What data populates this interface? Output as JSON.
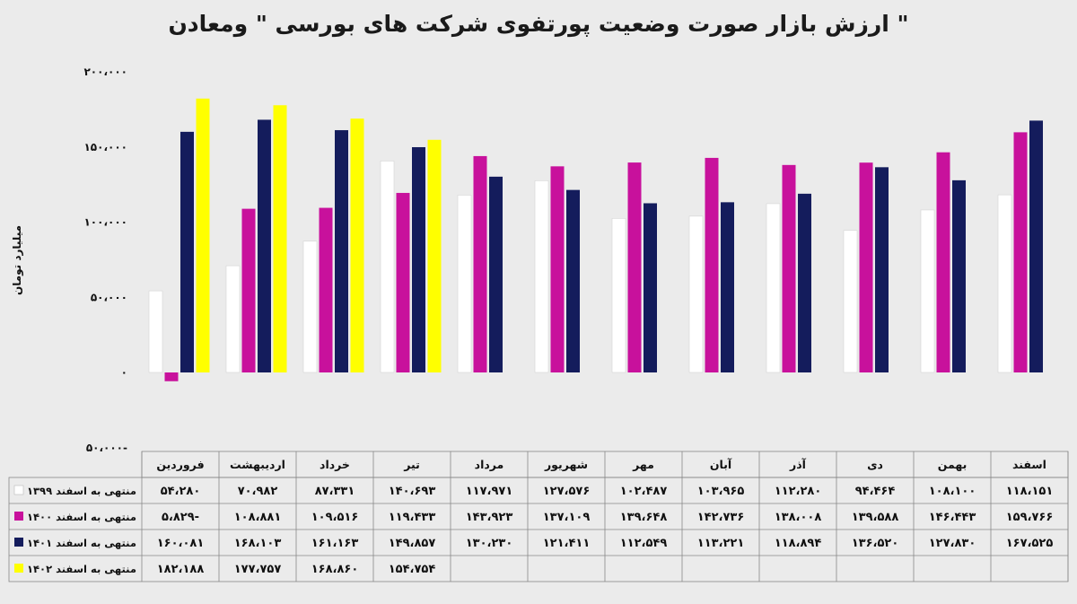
{
  "chart_data": {
    "type": "bar",
    "title": "ارزش بازار صورت وضعیت پورتفوی شرکت های بورسی \" ومعادن \"",
    "ylabel": "میلیارد تومان",
    "ylim": [
      -50000,
      200000
    ],
    "yticks": [
      -50000,
      0,
      50000,
      100000,
      150000,
      200000
    ],
    "ytick_labels": [
      "۵۰،۰۰۰-",
      "۰",
      "۵۰،۰۰۰",
      "۱۰۰،۰۰۰",
      "۱۵۰،۰۰۰",
      "۲۰۰،۰۰۰"
    ],
    "grid": false,
    "legend_position": "table-left",
    "categories": [
      "فروردین",
      "اردیبهشت",
      "خرداد",
      "تیر",
      "مرداد",
      "شهریور",
      "مهر",
      "آبان",
      "آذر",
      "دی",
      "بهمن",
      "اسفند"
    ],
    "series": [
      {
        "name": "منتهی به اسفند ۱۳۹۹",
        "color": "#ffffff",
        "values": [
          54280,
          70982,
          87331,
          140693,
          117971,
          127576,
          102487,
          103965,
          112280,
          94464,
          108100,
          118151
        ],
        "labels": [
          "۵۴،۲۸۰",
          "۷۰،۹۸۲",
          "۸۷،۳۳۱",
          "۱۴۰،۶۹۳",
          "۱۱۷،۹۷۱",
          "۱۲۷،۵۷۶",
          "۱۰۲،۴۸۷",
          "۱۰۳،۹۶۵",
          "۱۱۲،۲۸۰",
          "۹۴،۴۶۴",
          "۱۰۸،۱۰۰",
          "۱۱۸،۱۵۱"
        ]
      },
      {
        "name": "منتهی به اسفند ۱۴۰۰",
        "color": "#c8119c",
        "values": [
          -5829,
          108881,
          109516,
          119433,
          143923,
          137109,
          139648,
          142736,
          138008,
          139588,
          146443,
          159766
        ],
        "labels": [
          "۵،۸۲۹-",
          "۱۰۸،۸۸۱",
          "۱۰۹،۵۱۶",
          "۱۱۹،۴۳۳",
          "۱۴۳،۹۲۳",
          "۱۳۷،۱۰۹",
          "۱۳۹،۶۴۸",
          "۱۴۲،۷۳۶",
          "۱۳۸،۰۰۸",
          "۱۳۹،۵۸۸",
          "۱۴۶،۴۴۳",
          "۱۵۹،۷۶۶"
        ]
      },
      {
        "name": "منتهی به اسفند ۱۴۰۱",
        "color": "#141c5c",
        "values": [
          160081,
          168103,
          161163,
          149857,
          130230,
          121411,
          112549,
          113221,
          118894,
          136520,
          127830,
          167525
        ],
        "labels": [
          "۱۶۰،۰۸۱",
          "۱۶۸،۱۰۳",
          "۱۶۱،۱۶۳",
          "۱۴۹،۸۵۷",
          "۱۳۰،۲۳۰",
          "۱۲۱،۴۱۱",
          "۱۱۲،۵۴۹",
          "۱۱۳،۲۲۱",
          "۱۱۸،۸۹۴",
          "۱۳۶،۵۲۰",
          "۱۲۷،۸۳۰",
          "۱۶۷،۵۲۵"
        ]
      },
      {
        "name": "منتهی به اسفند ۱۴۰۲",
        "color": "#ffff00",
        "values": [
          182188,
          177757,
          168860,
          154754,
          null,
          null,
          null,
          null,
          null,
          null,
          null,
          null
        ],
        "labels": [
          "۱۸۲،۱۸۸",
          "۱۷۷،۷۵۷",
          "۱۶۸،۸۶۰",
          "۱۵۴،۷۵۴",
          "",
          "",
          "",
          "",
          "",
          "",
          "",
          ""
        ]
      }
    ]
  }
}
